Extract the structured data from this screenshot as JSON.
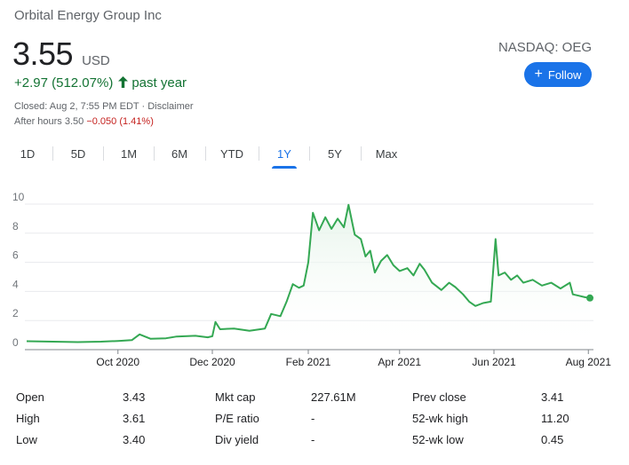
{
  "header": {
    "company": "Orbital Energy Group Inc",
    "price": "3.55",
    "currency": "USD",
    "change": "+2.97 (512.07%)",
    "period": "past year",
    "closed_text": "Closed: Aug 2, 7:55 PM EDT · ",
    "disclaimer": "Disclaimer",
    "after_hours_label": "After hours 3.50 ",
    "after_hours_change": "−0.050 (1.41%)",
    "ticker": "NASDAQ: OEG",
    "follow_label": "Follow"
  },
  "tabs": [
    "1D",
    "5D",
    "1M",
    "6M",
    "YTD",
    "1Y",
    "5Y",
    "Max"
  ],
  "active_tab": "1Y",
  "colors": {
    "line": "#34a853",
    "fill": "#e6f4ea",
    "accent": "#1a73e8",
    "positive": "#137333",
    "negative": "#c5221f"
  },
  "chart_data": {
    "type": "area",
    "y_ticks": [
      "0",
      "2",
      "4",
      "6",
      "8",
      "10"
    ],
    "ylim": [
      0,
      10
    ],
    "x_range": [
      "2020-08-03",
      "2021-08-02"
    ],
    "x_ticks": [
      {
        "label": "Oct 2020",
        "date": "2020-10-01"
      },
      {
        "label": "Dec 2020",
        "date": "2020-12-01"
      },
      {
        "label": "Feb 2021",
        "date": "2021-02-01"
      },
      {
        "label": "Apr 2021",
        "date": "2021-04-01"
      },
      {
        "label": "Jun 2021",
        "date": "2021-06-01"
      },
      {
        "label": "Aug 2021",
        "date": "2021-08-01"
      }
    ],
    "grid": true,
    "points": [
      [
        "2020-08-03",
        0.58
      ],
      [
        "2020-08-20",
        0.55
      ],
      [
        "2020-09-05",
        0.52
      ],
      [
        "2020-09-20",
        0.55
      ],
      [
        "2020-10-01",
        0.6
      ],
      [
        "2020-10-10",
        0.65
      ],
      [
        "2020-10-15",
        1.05
      ],
      [
        "2020-10-22",
        0.75
      ],
      [
        "2020-11-01",
        0.78
      ],
      [
        "2020-11-08",
        0.9
      ],
      [
        "2020-11-20",
        0.95
      ],
      [
        "2020-11-28",
        0.85
      ],
      [
        "2020-12-01",
        0.92
      ],
      [
        "2020-12-03",
        1.9
      ],
      [
        "2020-12-06",
        1.4
      ],
      [
        "2020-12-15",
        1.45
      ],
      [
        "2020-12-25",
        1.3
      ],
      [
        "2021-01-04",
        1.45
      ],
      [
        "2021-01-08",
        2.45
      ],
      [
        "2021-01-14",
        2.3
      ],
      [
        "2021-01-18",
        3.3
      ],
      [
        "2021-01-22",
        4.5
      ],
      [
        "2021-01-26",
        4.25
      ],
      [
        "2021-01-29",
        4.4
      ],
      [
        "2021-02-01",
        6.0
      ],
      [
        "2021-02-04",
        9.4
      ],
      [
        "2021-02-08",
        8.2
      ],
      [
        "2021-02-12",
        9.1
      ],
      [
        "2021-02-16",
        8.3
      ],
      [
        "2021-02-20",
        9.0
      ],
      [
        "2021-02-24",
        8.4
      ],
      [
        "2021-02-27",
        9.95
      ],
      [
        "2021-03-03",
        7.9
      ],
      [
        "2021-03-07",
        7.6
      ],
      [
        "2021-03-10",
        6.4
      ],
      [
        "2021-03-13",
        6.8
      ],
      [
        "2021-03-16",
        5.3
      ],
      [
        "2021-03-20",
        6.1
      ],
      [
        "2021-03-24",
        6.5
      ],
      [
        "2021-03-28",
        5.8
      ],
      [
        "2021-04-01",
        5.4
      ],
      [
        "2021-04-06",
        5.6
      ],
      [
        "2021-04-10",
        5.1
      ],
      [
        "2021-04-14",
        5.9
      ],
      [
        "2021-04-17",
        5.5
      ],
      [
        "2021-04-22",
        4.6
      ],
      [
        "2021-04-28",
        4.1
      ],
      [
        "2021-05-03",
        4.6
      ],
      [
        "2021-05-07",
        4.3
      ],
      [
        "2021-05-12",
        3.8
      ],
      [
        "2021-05-16",
        3.3
      ],
      [
        "2021-05-20",
        3.0
      ],
      [
        "2021-05-25",
        3.2
      ],
      [
        "2021-05-30",
        3.3
      ],
      [
        "2021-06-02",
        7.6
      ],
      [
        "2021-06-04",
        5.1
      ],
      [
        "2021-06-08",
        5.3
      ],
      [
        "2021-06-12",
        4.8
      ],
      [
        "2021-06-16",
        5.1
      ],
      [
        "2021-06-20",
        4.6
      ],
      [
        "2021-06-26",
        4.8
      ],
      [
        "2021-07-02",
        4.4
      ],
      [
        "2021-07-08",
        4.6
      ],
      [
        "2021-07-14",
        4.2
      ],
      [
        "2021-07-20",
        4.6
      ],
      [
        "2021-07-22",
        3.8
      ],
      [
        "2021-07-26",
        3.7
      ],
      [
        "2021-07-30",
        3.6
      ],
      [
        "2021-08-02",
        3.55
      ]
    ]
  },
  "stats": [
    {
      "label": "Open",
      "value": "3.43"
    },
    {
      "label": "High",
      "value": "3.61"
    },
    {
      "label": "Low",
      "value": "3.40"
    },
    {
      "label": "Mkt cap",
      "value": "227.61M"
    },
    {
      "label": "P/E ratio",
      "value": "-"
    },
    {
      "label": "Div yield",
      "value": "-"
    },
    {
      "label": "Prev close",
      "value": "3.41"
    },
    {
      "label": "52-wk high",
      "value": "11.20"
    },
    {
      "label": "52-wk low",
      "value": "0.45"
    }
  ]
}
